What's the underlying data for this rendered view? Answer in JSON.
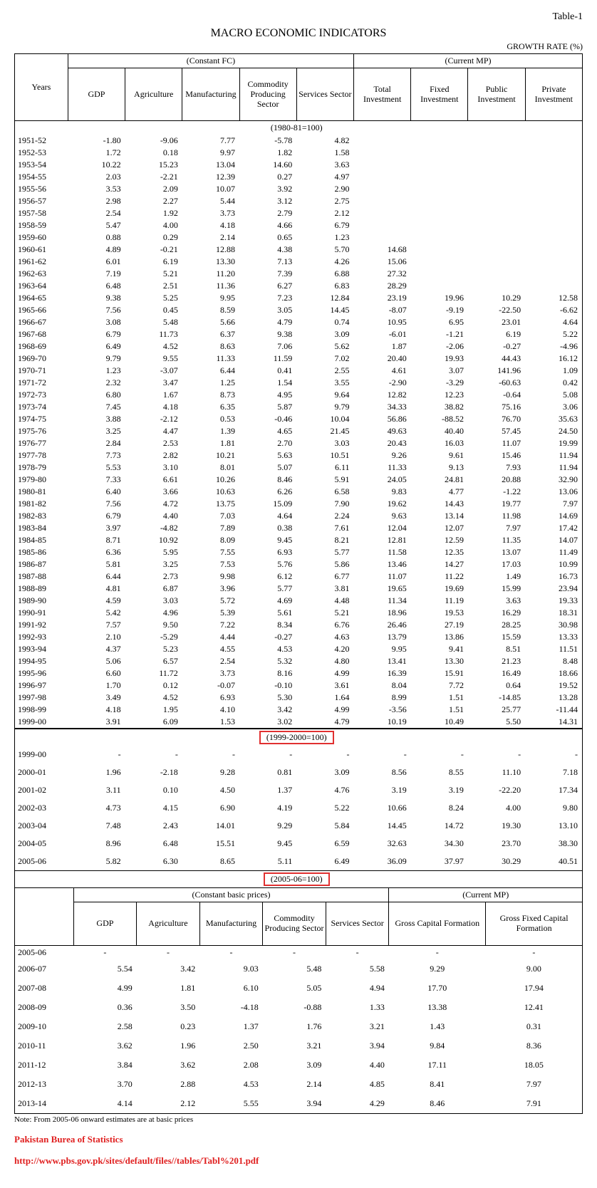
{
  "tableLabel": "Table-1",
  "title": "MACRO ECONOMIC INDICATORS",
  "growthRate": "GROWTH RATE (%)",
  "header1": {
    "constant": "(Constant FC)",
    "current": "(Current MP)",
    "years": "Years",
    "cols": [
      "GDP",
      "Agriculture",
      "Manufacturing",
      "Commodity Producing Sector",
      "Services Sector",
      "Total Investment",
      "Fixed Investment",
      "Public Investment",
      "Private Investment"
    ]
  },
  "basis1": "(1980-81=100)",
  "rows1": [
    [
      "1951-52",
      "-1.80",
      "-9.06",
      "7.77",
      "-5.78",
      "4.82",
      "",
      "",
      "",
      ""
    ],
    [
      "1952-53",
      "1.72",
      "0.18",
      "9.97",
      "1.82",
      "1.58",
      "",
      "",
      "",
      ""
    ],
    [
      "1953-54",
      "10.22",
      "15.23",
      "13.04",
      "14.60",
      "3.63",
      "",
      "",
      "",
      ""
    ],
    [
      "1954-55",
      "2.03",
      "-2.21",
      "12.39",
      "0.27",
      "4.97",
      "",
      "",
      "",
      ""
    ],
    [
      "1955-56",
      "3.53",
      "2.09",
      "10.07",
      "3.92",
      "2.90",
      "",
      "",
      "",
      ""
    ],
    [
      "1956-57",
      "2.98",
      "2.27",
      "5.44",
      "3.12",
      "2.75",
      "",
      "",
      "",
      ""
    ],
    [
      "1957-58",
      "2.54",
      "1.92",
      "3.73",
      "2.79",
      "2.12",
      "",
      "",
      "",
      ""
    ],
    [
      "1958-59",
      "5.47",
      "4.00",
      "4.18",
      "4.66",
      "6.79",
      "",
      "",
      "",
      ""
    ],
    [
      "1959-60",
      "0.88",
      "0.29",
      "2.14",
      "0.65",
      "1.23",
      "",
      "",
      "",
      ""
    ],
    [
      "1960-61",
      "4.89",
      "-0.21",
      "12.88",
      "4.38",
      "5.70",
      "14.68",
      "",
      "",
      ""
    ],
    [
      "1961-62",
      "6.01",
      "6.19",
      "13.30",
      "7.13",
      "4.26",
      "15.06",
      "",
      "",
      ""
    ],
    [
      "1962-63",
      "7.19",
      "5.21",
      "11.20",
      "7.39",
      "6.88",
      "27.32",
      "",
      "",
      ""
    ],
    [
      "1963-64",
      "6.48",
      "2.51",
      "11.36",
      "6.27",
      "6.83",
      "28.29",
      "",
      "",
      ""
    ],
    [
      "1964-65",
      "9.38",
      "5.25",
      "9.95",
      "7.23",
      "12.84",
      "23.19",
      "19.96",
      "10.29",
      "12.58"
    ],
    [
      "1965-66",
      "7.56",
      "0.45",
      "8.59",
      "3.05",
      "14.45",
      "-8.07",
      "-9.19",
      "-22.50",
      "-6.62"
    ],
    [
      "1966-67",
      "3.08",
      "5.48",
      "5.66",
      "4.79",
      "0.74",
      "10.95",
      "6.95",
      "23.01",
      "4.64"
    ],
    [
      "1967-68",
      "6.79",
      "11.73",
      "6.37",
      "9.38",
      "3.09",
      "-6.01",
      "-1.21",
      "6.19",
      "5.22"
    ],
    [
      "1968-69",
      "6.49",
      "4.52",
      "8.63",
      "7.06",
      "5.62",
      "1.87",
      "-2.06",
      "-0.27",
      "-4.96"
    ],
    [
      "1969-70",
      "9.79",
      "9.55",
      "11.33",
      "11.59",
      "7.02",
      "20.40",
      "19.93",
      "44.43",
      "16.12"
    ],
    [
      "1970-71",
      "1.23",
      "-3.07",
      "6.44",
      "0.41",
      "2.55",
      "4.61",
      "3.07",
      "141.96",
      "1.09"
    ],
    [
      "1971-72",
      "2.32",
      "3.47",
      "1.25",
      "1.54",
      "3.55",
      "-2.90",
      "-3.29",
      "-60.63",
      "0.42"
    ],
    [
      "1972-73",
      "6.80",
      "1.67",
      "8.73",
      "4.95",
      "9.64",
      "12.82",
      "12.23",
      "-0.64",
      "5.08"
    ],
    [
      "1973-74",
      "7.45",
      "4.18",
      "6.35",
      "5.87",
      "9.79",
      "34.33",
      "38.82",
      "75.16",
      "3.06"
    ],
    [
      "1974-75",
      "3.88",
      "-2.12",
      "0.53",
      "-0.46",
      "10.04",
      "56.86",
      "-88.52",
      "76.70",
      "35.63"
    ],
    [
      "1975-76",
      "3.25",
      "4.47",
      "1.39",
      "4.65",
      "21.45",
      "49.63",
      "40.40",
      "57.45",
      "24.50"
    ],
    [
      "1976-77",
      "2.84",
      "2.53",
      "1.81",
      "2.70",
      "3.03",
      "20.43",
      "16.03",
      "11.07",
      "19.99"
    ],
    [
      "1977-78",
      "7.73",
      "2.82",
      "10.21",
      "5.63",
      "10.51",
      "9.26",
      "9.61",
      "15.46",
      "11.94"
    ],
    [
      "1978-79",
      "5.53",
      "3.10",
      "8.01",
      "5.07",
      "6.11",
      "11.33",
      "9.13",
      "7.93",
      "11.94"
    ],
    [
      "1979-80",
      "7.33",
      "6.61",
      "10.26",
      "8.46",
      "5.91",
      "24.05",
      "24.81",
      "20.88",
      "32.90"
    ],
    [
      "1980-81",
      "6.40",
      "3.66",
      "10.63",
      "6.26",
      "6.58",
      "9.83",
      "4.77",
      "-1.22",
      "13.06"
    ],
    [
      "1981-82",
      "7.56",
      "4.72",
      "13.75",
      "15.09",
      "7.90",
      "19.62",
      "14.43",
      "19.77",
      "7.97"
    ],
    [
      "1982-83",
      "6.79",
      "4.40",
      "7.03",
      "4.64",
      "2.24",
      "9.63",
      "13.14",
      "11.98",
      "14.69"
    ],
    [
      "1983-84",
      "3.97",
      "-4.82",
      "7.89",
      "0.38",
      "7.61",
      "12.04",
      "12.07",
      "7.97",
      "17.42"
    ],
    [
      "1984-85",
      "8.71",
      "10.92",
      "8.09",
      "9.45",
      "8.21",
      "12.81",
      "12.59",
      "11.35",
      "14.07"
    ],
    [
      "1985-86",
      "6.36",
      "5.95",
      "7.55",
      "6.93",
      "5.77",
      "11.58",
      "12.35",
      "13.07",
      "11.49"
    ],
    [
      "1986-87",
      "5.81",
      "3.25",
      "7.53",
      "5.76",
      "5.86",
      "13.46",
      "14.27",
      "17.03",
      "10.99"
    ],
    [
      "1987-88",
      "6.44",
      "2.73",
      "9.98",
      "6.12",
      "6.77",
      "11.07",
      "11.22",
      "1.49",
      "16.73"
    ],
    [
      "1988-89",
      "4.81",
      "6.87",
      "3.96",
      "5.77",
      "3.81",
      "19.65",
      "19.69",
      "15.99",
      "23.94"
    ],
    [
      "1989-90",
      "4.59",
      "3.03",
      "5.72",
      "4.69",
      "4.48",
      "11.34",
      "11.19",
      "3.63",
      "19.33"
    ],
    [
      "1990-91",
      "5.42",
      "4.96",
      "5.39",
      "5.61",
      "5.21",
      "18.96",
      "19.53",
      "16.29",
      "18.31"
    ],
    [
      "1991-92",
      "7.57",
      "9.50",
      "7.22",
      "8.34",
      "6.76",
      "26.46",
      "27.19",
      "28.25",
      "30.98"
    ],
    [
      "1992-93",
      "2.10",
      "-5.29",
      "4.44",
      "-0.27",
      "4.63",
      "13.79",
      "13.86",
      "15.59",
      "13.33"
    ],
    [
      "1993-94",
      "4.37",
      "5.23",
      "4.55",
      "4.53",
      "4.20",
      "9.95",
      "9.41",
      "8.51",
      "11.51"
    ],
    [
      "1994-95",
      "5.06",
      "6.57",
      "2.54",
      "5.32",
      "4.80",
      "13.41",
      "13.30",
      "21.23",
      "8.48"
    ],
    [
      "1995-96",
      "6.60",
      "11.72",
      "3.73",
      "8.16",
      "4.99",
      "16.39",
      "15.91",
      "16.49",
      "18.66"
    ],
    [
      "1996-97",
      "1.70",
      "0.12",
      "-0.07",
      "-0.10",
      "3.61",
      "8.04",
      "7.72",
      "0.64",
      "19.52"
    ],
    [
      "1997-98",
      "3.49",
      "4.52",
      "6.93",
      "5.30",
      "1.64",
      "8.99",
      "1.51",
      "-14.85",
      "13.28"
    ],
    [
      "1998-99",
      "4.18",
      "1.95",
      "4.10",
      "3.42",
      "4.99",
      "-3.56",
      "1.51",
      "25.77",
      "-11.44"
    ],
    [
      "1999-00",
      "3.91",
      "6.09",
      "1.53",
      "3.02",
      "4.79",
      "10.19",
      "10.49",
      "5.50",
      "14.31"
    ]
  ],
  "basis2": "(1999-2000=100)",
  "rows2": [
    [
      "1999-00",
      "- ",
      "- ",
      "- ",
      "- ",
      "- ",
      "- ",
      "- ",
      "- ",
      "- "
    ],
    [
      "2000-01",
      "1.96",
      "-2.18",
      "9.28",
      "0.81",
      "3.09",
      "8.56",
      "8.55",
      "11.10",
      "7.18"
    ],
    [
      "2001-02",
      "3.11",
      "0.10",
      "4.50",
      "1.37",
      "4.76",
      "3.19",
      "3.19",
      "-22.20",
      "17.34"
    ],
    [
      "2002-03",
      "4.73",
      "4.15",
      "6.90",
      "4.19",
      "5.22",
      "10.66",
      "8.24",
      "4.00",
      "9.80"
    ],
    [
      "2003-04",
      "7.48",
      "2.43",
      "14.01",
      "9.29",
      "5.84",
      "14.45",
      "14.72",
      "19.30",
      "13.10"
    ],
    [
      "2004-05",
      "8.96",
      "6.48",
      "15.51",
      "9.45",
      "6.59",
      "32.63",
      "34.30",
      "23.70",
      "38.30"
    ],
    [
      "2005-06",
      "5.82",
      "6.30",
      "8.65",
      "5.11",
      "6.49",
      "36.09",
      "37.97",
      "30.29",
      "40.51"
    ]
  ],
  "basis3": "(2005-06=100)",
  "header3": {
    "constant": "(Constant basic prices)",
    "current": "(Current MP)",
    "cols": [
      "GDP",
      "Agriculture",
      "Manufacturing",
      "Commodity Producing Sector",
      "Services Sector",
      "Gross Capital Formation",
      "Gross Fixed Capital Formation"
    ]
  },
  "rows3": [
    [
      "2005-06",
      "-",
      "-",
      "-",
      "-",
      "-",
      "-",
      "-"
    ],
    [
      "2006-07",
      "5.54",
      "3.42",
      "9.03",
      "5.48",
      "5.58",
      "9.29",
      "9.00"
    ],
    [
      "2007-08",
      "4.99",
      "1.81",
      "6.10",
      "5.05",
      "4.94",
      "17.70",
      "17.94"
    ],
    [
      "2008-09",
      "0.36",
      "3.50",
      "-4.18",
      "-0.88",
      "1.33",
      "13.38",
      "12.41"
    ],
    [
      "2009-10",
      "2.58",
      "0.23",
      "1.37",
      "1.76",
      "3.21",
      "1.43",
      "0.31"
    ],
    [
      "2010-11",
      "3.62",
      "1.96",
      "2.50",
      "3.21",
      "3.94",
      "9.84",
      "8.36"
    ],
    [
      "2011-12",
      "3.84",
      "3.62",
      "2.08",
      "3.09",
      "4.40",
      "17.11",
      "18.05"
    ],
    [
      "2012-13",
      "3.70",
      "2.88",
      "4.53",
      "2.14",
      "4.85",
      "8.41",
      "7.97"
    ],
    [
      "2013-14",
      "4.14",
      "2.12",
      "5.55",
      "3.94",
      "4.29",
      "8.46",
      "7.91"
    ]
  ],
  "note": "Note: From 2005-06 onward estimates are at basic prices",
  "source1": "Pakistan Burea of Statistics",
  "source2": "http://www.pbs.gov.pk/sites/default/files//tables/Tabl%201.pdf"
}
